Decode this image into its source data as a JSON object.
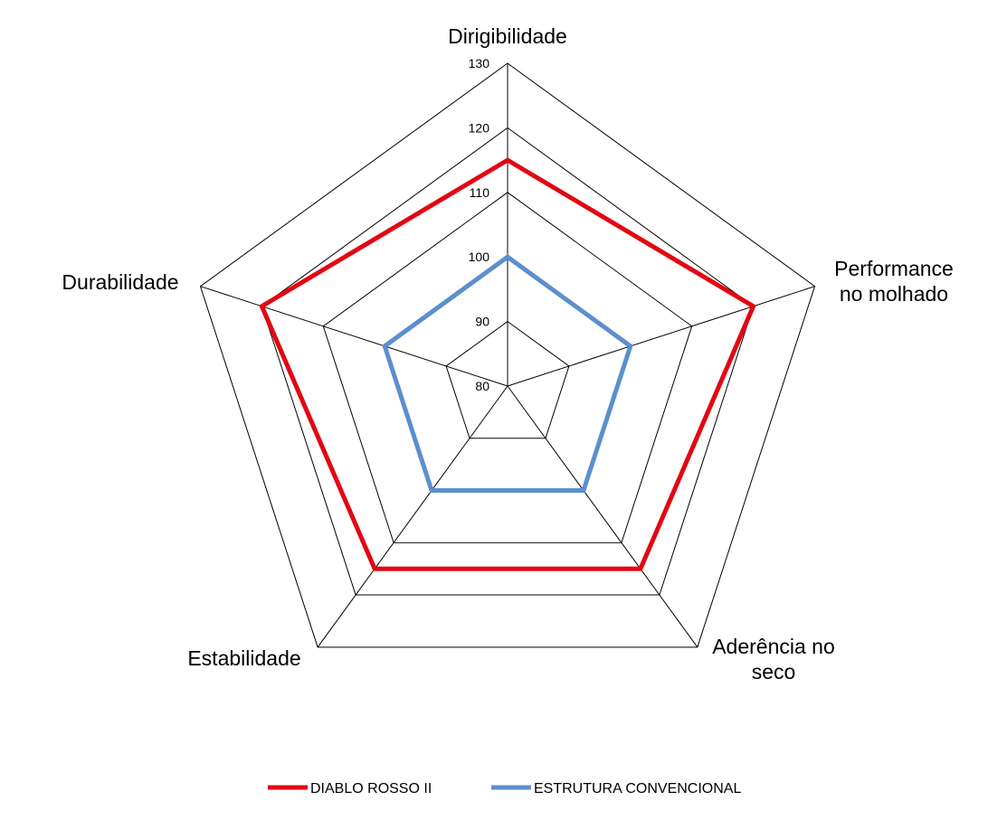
{
  "chart_data": {
    "type": "radar",
    "categories": [
      "Dirigibilidade",
      "Performance no molhado",
      "Aderência no seco",
      "Estabilidade",
      "Durabilidade"
    ],
    "category_display_lines": [
      [
        "Dirigibilidade"
      ],
      [
        "Performance",
        "no molhado"
      ],
      [
        "Aderência no",
        "seco"
      ],
      [
        "Estabilidade"
      ],
      [
        "Durabilidade"
      ]
    ],
    "ticks": [
      "80",
      "90",
      "100",
      "110",
      "120",
      "130"
    ],
    "rlim": [
      80,
      130
    ],
    "grid": true,
    "legend_position": "bottom",
    "series": [
      {
        "name": "DIABLO ROSSO II",
        "color": "#e30613",
        "values": [
          115,
          120,
          115,
          115,
          120
        ]
      },
      {
        "name": "ESTRUTURA CONVENCIONAL",
        "color": "#5b8fcf",
        "values": [
          100,
          100,
          100,
          100,
          100
        ]
      }
    ],
    "grid_color": "#000000"
  }
}
